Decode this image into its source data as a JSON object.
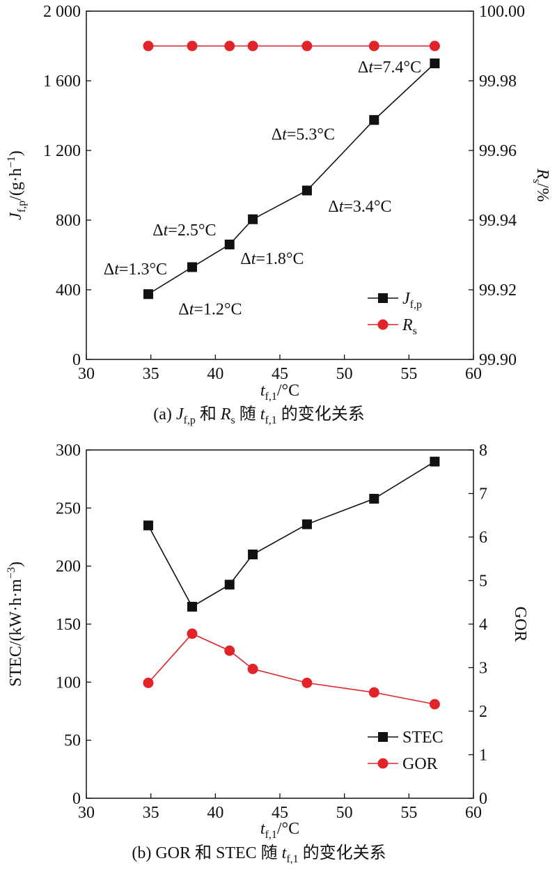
{
  "chart_data": [
    {
      "id": "a",
      "type": "line",
      "caption": "(a) Jf,p 和 Rs 随 tf,1 的变化关系",
      "caption_parts": {
        "prefix": "(a) ",
        "v1": "J",
        "v1_sub": "f,p",
        "mid1": " 和 ",
        "v2": "R",
        "v2_sub": "s",
        "mid2": " 随 ",
        "v3": "t",
        "v3_sub": "f,1",
        "suffix": " 的变化关系"
      },
      "xlabel": {
        "main": "t",
        "sub": "f,1",
        "unit": "/°C"
      },
      "ylabel_left": {
        "main": "J",
        "sub": "f,p",
        "unit": "/(g·h",
        "sup": "−1",
        "close": ")"
      },
      "ylabel_right": {
        "main": "R",
        "sub": "s",
        "unit": "/%"
      },
      "xlim": [
        30,
        60
      ],
      "xticks": [
        30,
        35,
        40,
        45,
        50,
        55,
        60
      ],
      "xtick_labels": [
        "30",
        "35",
        "40",
        "45",
        "50",
        "55",
        "60"
      ],
      "ylim_left": [
        0,
        2000
      ],
      "yticks_left": [
        0,
        400,
        800,
        1200,
        1600,
        2000
      ],
      "ytick_labels_left": [
        "0",
        "400",
        "800",
        "1 200",
        "1 600",
        "2 000"
      ],
      "ylim_right": [
        99.9,
        100.0
      ],
      "yticks_right": [
        99.9,
        99.92,
        99.94,
        99.96,
        99.98,
        100.0
      ],
      "ytick_labels_right": [
        "99.90",
        "99.92",
        "99.94",
        "99.96",
        "99.98",
        "100.00"
      ],
      "x": [
        34.8,
        38.2,
        41.1,
        42.9,
        47.1,
        52.3,
        57.0
      ],
      "series": [
        {
          "name": "Jf,p",
          "name_main": "J",
          "name_sub": "f,p",
          "axis": "left",
          "marker": "square",
          "color": "#111111",
          "values": [
            375,
            530,
            660,
            805,
            970,
            1375,
            1700
          ]
        },
        {
          "name": "Rs",
          "name_main": "R",
          "name_sub": "s",
          "axis": "right",
          "marker": "circle",
          "color": "#e0242a",
          "values": [
            99.99,
            99.99,
            99.99,
            99.99,
            99.99,
            99.99,
            99.99
          ]
        }
      ],
      "annotations": [
        {
          "pre": "Δ",
          "var": "t",
          "post": "=1.2°C",
          "x": 39.6,
          "y": 290
        },
        {
          "pre": "Δ",
          "var": "t",
          "post": "=1.3°C",
          "x": 33.8,
          "y": 520
        },
        {
          "pre": "Δ",
          "var": "t",
          "post": "=2.5°C",
          "x": 37.6,
          "y": 745
        },
        {
          "pre": "Δ",
          "var": "t",
          "post": "=1.8°C",
          "x": 44.4,
          "y": 580
        },
        {
          "pre": "Δ",
          "var": "t",
          "post": "=3.4°C",
          "x": 51.2,
          "y": 880
        },
        {
          "pre": "Δ",
          "var": "t",
          "post": "=5.3°C",
          "x": 46.8,
          "y": 1295
        },
        {
          "pre": "Δ",
          "var": "t",
          "post": "=7.4°C",
          "x": 53.5,
          "y": 1680
        }
      ],
      "legend_position": "bottom-right",
      "grid": false
    },
    {
      "id": "b",
      "type": "line",
      "caption": "(b) GOR 和 STEC 随 tf,1 的变化关系",
      "caption_parts": {
        "prefix": "(b) GOR 和 STEC 随 ",
        "v3": "t",
        "v3_sub": "f,1",
        "suffix": " 的变化关系"
      },
      "xlabel": {
        "main": "t",
        "sub": "f,1",
        "unit": "/°C"
      },
      "ylabel_left": {
        "main": "STEC/(kW·h·m",
        "sup": "−3",
        "close": ")"
      },
      "ylabel_right": {
        "main": "GOR"
      },
      "xlim": [
        30,
        60
      ],
      "xticks": [
        30,
        35,
        40,
        45,
        50,
        55,
        60
      ],
      "xtick_labels": [
        "30",
        "35",
        "40",
        "45",
        "50",
        "55",
        "60"
      ],
      "ylim_left": [
        0,
        300
      ],
      "yticks_left": [
        0,
        50,
        100,
        150,
        200,
        250,
        300
      ],
      "ytick_labels_left": [
        "0",
        "50",
        "100",
        "150",
        "200",
        "250",
        "300"
      ],
      "ylim_right": [
        0,
        8
      ],
      "yticks_right": [
        0,
        1,
        2,
        3,
        4,
        5,
        6,
        7,
        8
      ],
      "ytick_labels_right": [
        "0",
        "1",
        "2",
        "3",
        "4",
        "5",
        "6",
        "7",
        "8"
      ],
      "x": [
        34.8,
        38.2,
        41.1,
        42.9,
        47.1,
        52.3,
        57.0
      ],
      "series": [
        {
          "name": "STEC",
          "name_main": "STEC",
          "name_sub": "",
          "axis": "left",
          "marker": "square",
          "color": "#111111",
          "values": [
            235,
            165,
            184,
            210,
            236,
            258,
            290
          ]
        },
        {
          "name": "GOR",
          "name_main": "GOR",
          "name_sub": "",
          "axis": "right",
          "marker": "circle",
          "color": "#e0242a",
          "values": [
            2.65,
            3.78,
            3.39,
            2.97,
            2.65,
            2.43,
            2.16
          ]
        }
      ],
      "annotations": [],
      "legend_position": "bottom-right",
      "grid": false
    }
  ]
}
